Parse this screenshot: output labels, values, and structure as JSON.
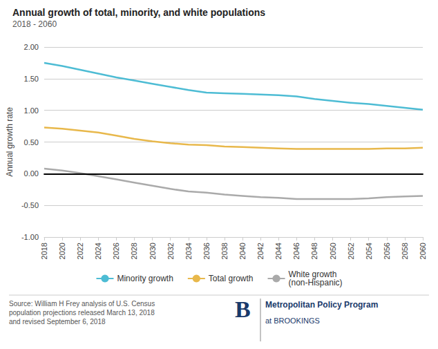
{
  "chart_data": {
    "type": "line",
    "title": "Annual growth of total, minority, and white populations",
    "subtitle": "2018 - 2060",
    "ylabel": "Annual growth rate",
    "x": [
      2018,
      2020,
      2022,
      2024,
      2026,
      2028,
      2030,
      2032,
      2034,
      2036,
      2038,
      2040,
      2042,
      2044,
      2046,
      2048,
      2050,
      2052,
      2054,
      2056,
      2058,
      2060
    ],
    "series": [
      {
        "name": "Minority growth",
        "color": "#4dbcd4",
        "values": [
          1.75,
          1.7,
          1.64,
          1.58,
          1.52,
          1.47,
          1.42,
          1.37,
          1.32,
          1.28,
          1.27,
          1.26,
          1.25,
          1.24,
          1.22,
          1.18,
          1.15,
          1.12,
          1.1,
          1.07,
          1.04,
          1.01
        ]
      },
      {
        "name": "Total growth",
        "color": "#e8b84b",
        "values": [
          0.73,
          0.71,
          0.68,
          0.65,
          0.6,
          0.55,
          0.51,
          0.48,
          0.46,
          0.45,
          0.43,
          0.42,
          0.41,
          0.4,
          0.39,
          0.39,
          0.39,
          0.39,
          0.39,
          0.4,
          0.4,
          0.41
        ]
      },
      {
        "name": "White growth\n(non-Hispanic)",
        "color": "#aaaaaa",
        "values": [
          0.08,
          0.05,
          0.01,
          -0.04,
          -0.09,
          -0.14,
          -0.19,
          -0.24,
          -0.28,
          -0.3,
          -0.33,
          -0.35,
          -0.37,
          -0.38,
          -0.4,
          -0.4,
          -0.4,
          -0.4,
          -0.39,
          -0.37,
          -0.36,
          -0.35
        ]
      }
    ],
    "xlim": [
      2018,
      2060
    ],
    "xticks": [
      2018,
      2020,
      2022,
      2024,
      2026,
      2028,
      2030,
      2032,
      2034,
      2036,
      2038,
      2040,
      2042,
      2044,
      2046,
      2048,
      2050,
      2052,
      2054,
      2056,
      2058,
      2060
    ],
    "ylim": [
      -1.0,
      2.0
    ],
    "yticks": [
      {
        "value": -1.0,
        "label": "-1.00"
      },
      {
        "value": -0.5,
        "label": "-0.50"
      },
      {
        "value": 0.0,
        "label": "0.00"
      },
      {
        "value": 0.5,
        "label": "0.50"
      },
      {
        "value": 1.0,
        "label": "1.00"
      },
      {
        "value": 1.5,
        "label": "1.50"
      },
      {
        "value": 2.0,
        "label": "2.00"
      }
    ],
    "grid": true,
    "legend": "bottom",
    "annotations": [
      "Source: William H Frey analysis of U.S. Census\npopulation projections released March 13, 2018\nand revised September 6, 2018",
      "B",
      "Metropolitan Policy Program",
      "at BROOKINGS"
    ]
  }
}
